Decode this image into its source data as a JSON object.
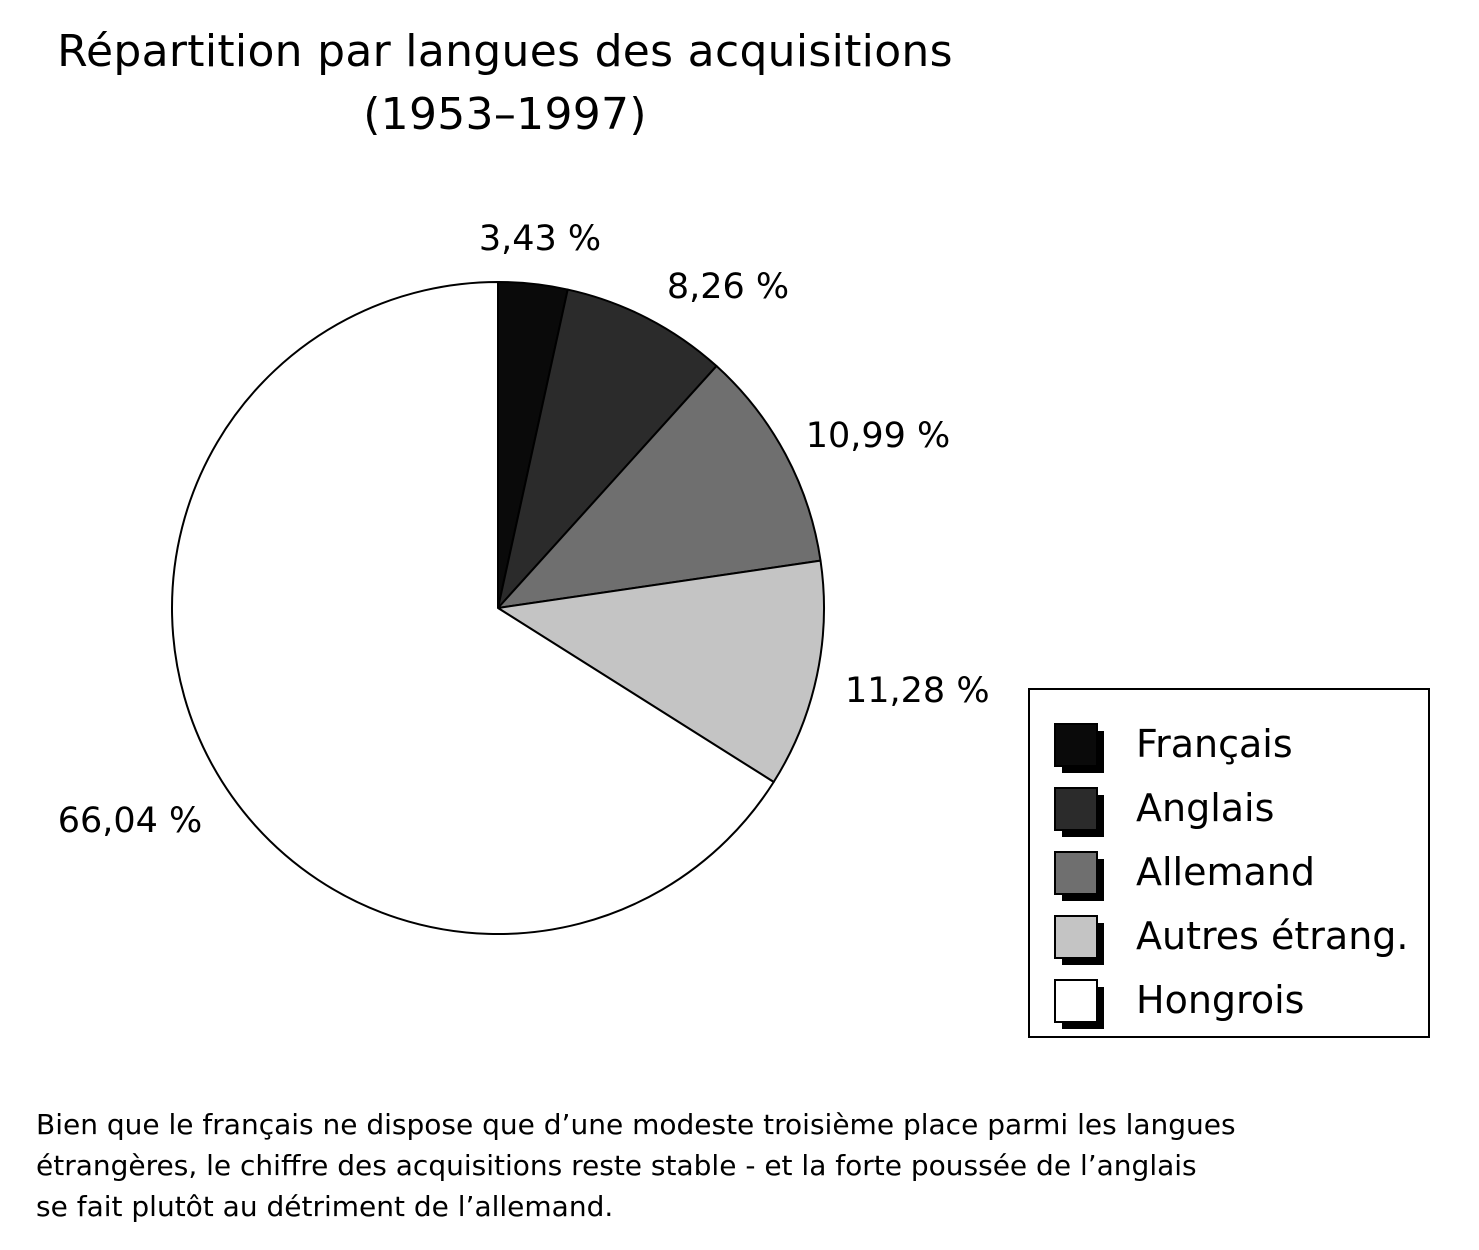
{
  "title": {
    "line1": "Répartition par langues des acquisitions",
    "line2": "(1953–1997)"
  },
  "chart_data": {
    "type": "pie",
    "title": "Répartition par langues des acquisitions (1953–1997)",
    "slices": [
      {
        "name": "Français",
        "value": 3.43,
        "label": "3,43 %",
        "color": "#0a0a0a"
      },
      {
        "name": "Anglais",
        "value": 8.26,
        "label": "8,26 %",
        "color": "#2b2b2b"
      },
      {
        "name": "Allemand",
        "value": 10.99,
        "label": "10,99 %",
        "color": "#6f6f6f"
      },
      {
        "name": "Autres étrang.",
        "value": 11.28,
        "label": "11,28  %",
        "color": "#c4c4c4"
      },
      {
        "name": "Hongrois",
        "value": 66.04,
        "label": "66,04 %",
        "color": "#ffffff"
      }
    ],
    "start": "12 o'clock",
    "direction": "clockwise",
    "legend_position": "right"
  },
  "caption": {
    "line1": "Bien que le français ne dispose que d’une modeste troisième place parmi les langues",
    "line2": "étrangères, le chiffre des acquisitions reste stable - et la forte poussée de l’anglais",
    "line3": "se fait plutôt au détriment de l’allemand."
  }
}
